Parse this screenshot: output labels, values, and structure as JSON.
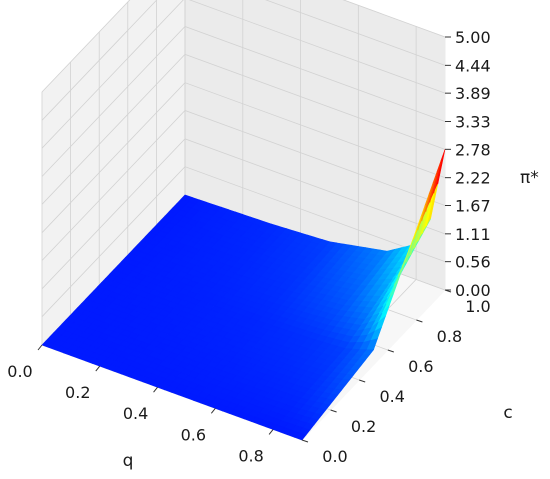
{
  "chart_data": {
    "type": "surface3d",
    "title": "",
    "xlabel": "q",
    "ylabel": "c",
    "zlabel": "π*",
    "x_ticks": [
      "0.0",
      "0.2",
      "0.4",
      "0.6",
      "0.8"
    ],
    "y_ticks": [
      "0.0",
      "0.2",
      "0.4",
      "0.6",
      "0.8",
      "1.0"
    ],
    "z_ticks": [
      "0.00",
      "0.56",
      "1.11",
      "1.67",
      "2.22",
      "2.78",
      "3.33",
      "3.89",
      "4.44",
      "5.00"
    ],
    "xlim": [
      0,
      0.9
    ],
    "ylim": [
      0,
      1.0
    ],
    "zlim": [
      0,
      5.0
    ],
    "colormap": "jet",
    "grid": true,
    "surface_samples": {
      "q": [
        0.0,
        0.3,
        0.5,
        0.7,
        0.8,
        0.85,
        0.9
      ],
      "c": [
        0.0,
        0.5,
        1.0
      ],
      "pi_star": [
        [
          0.0,
          0.0,
          0.0
        ],
        [
          0.0,
          0.02,
          0.05
        ],
        [
          0.0,
          0.04,
          0.12
        ],
        [
          0.0,
          0.08,
          0.35
        ],
        [
          0.0,
          0.12,
          0.7
        ],
        [
          0.0,
          0.2,
          1.3
        ],
        [
          0.0,
          0.3,
          2.78
        ]
      ]
    }
  }
}
